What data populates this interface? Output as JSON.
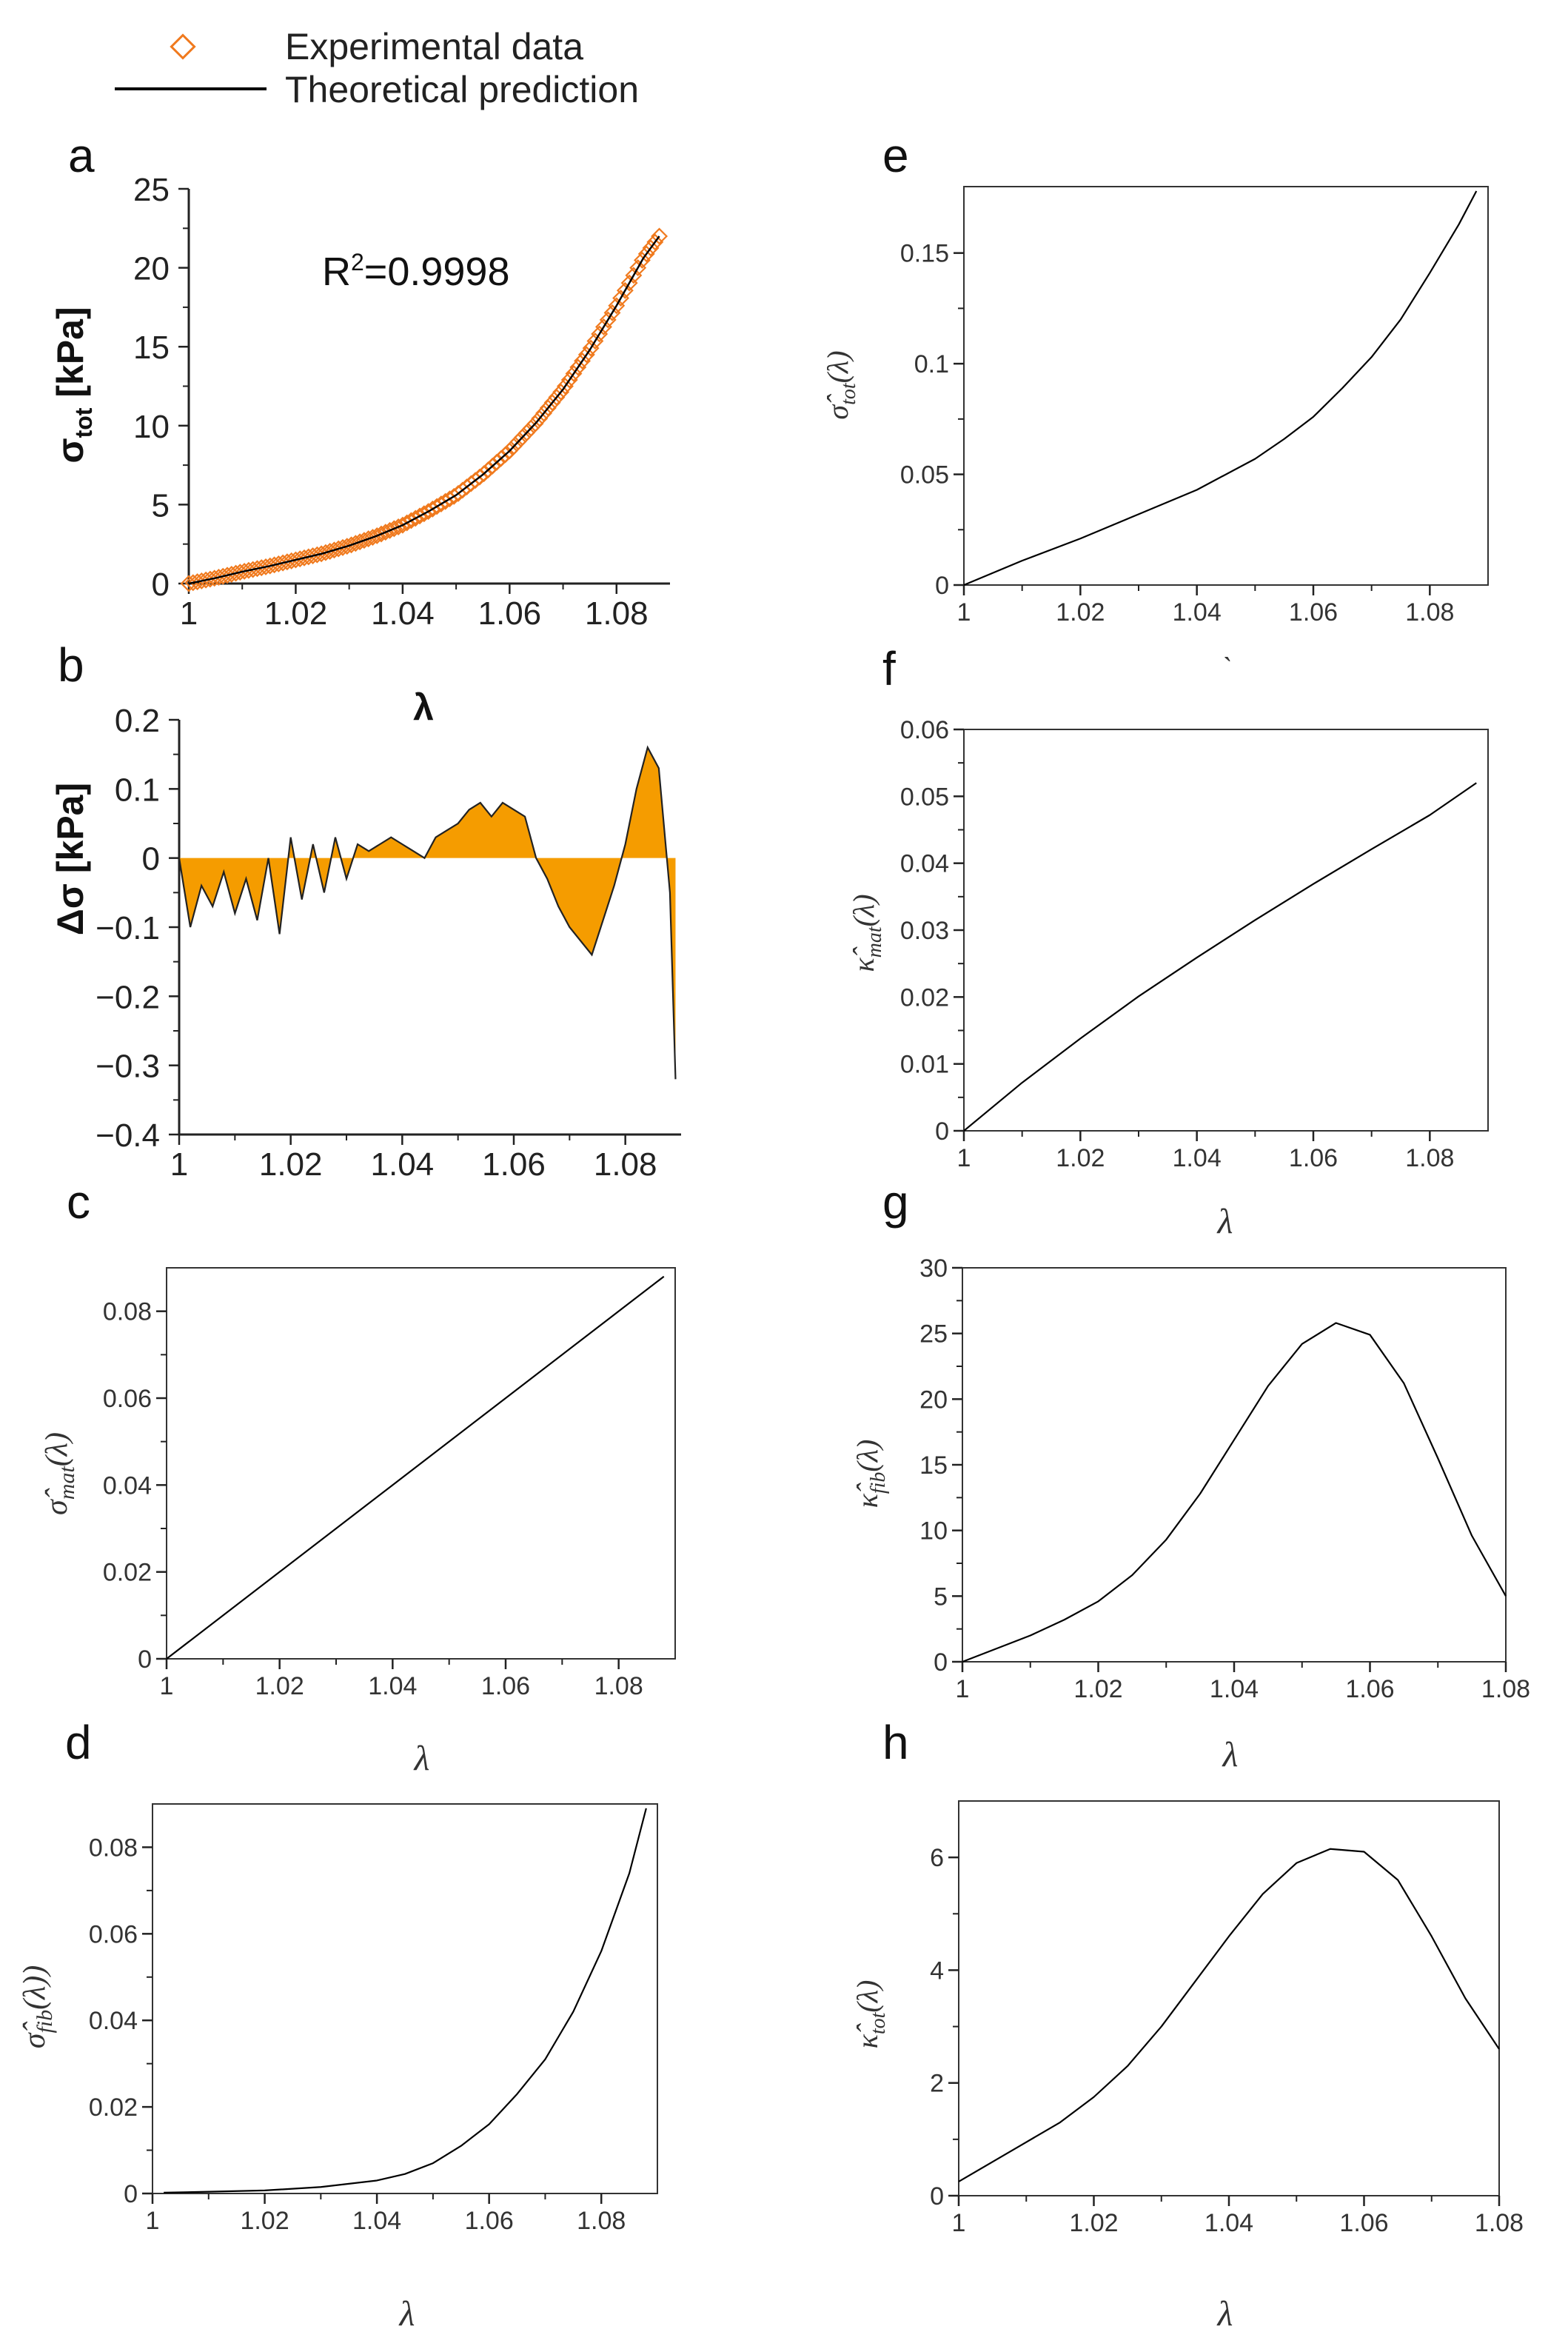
{
  "legend": {
    "experimental_label": "Experimental data",
    "theoretical_label": "Theoretical prediction",
    "marker_color": "#f07a1e",
    "line_color": "#000000"
  },
  "chart_data": [
    {
      "panel": "a",
      "type": "scatter",
      "title": "",
      "xlabel": "λ",
      "ylabel": "σ_tot [kPa]",
      "ylabel_main": "σ",
      "ylabel_sub": "tot",
      "ylabel_unit": " [kPa]",
      "annotation": "R²=0.9998",
      "annotation_main": "R",
      "annotation_sup": "2",
      "annotation_rest": "=0.9998",
      "xlim": [
        1.0,
        1.09
      ],
      "ylim": [
        0,
        25
      ],
      "xticks": [
        "1",
        "1.02",
        "1.04",
        "1.06",
        "1.08"
      ],
      "yticks": [
        "0",
        "5",
        "10",
        "15",
        "20",
        "25"
      ],
      "xtick_values": [
        1.0,
        1.02,
        1.04,
        1.06,
        1.08
      ],
      "ytick_values": [
        0,
        5,
        10,
        15,
        20,
        25
      ],
      "series": [
        {
          "name": "Experimental data",
          "style": "diamond",
          "color": "#f07a1e",
          "x": [
            1.0,
            1.005,
            1.01,
            1.015,
            1.02,
            1.025,
            1.03,
            1.035,
            1.04,
            1.045,
            1.05,
            1.055,
            1.06,
            1.065,
            1.07,
            1.075,
            1.08,
            1.085,
            1.088
          ],
          "y": [
            0.0,
            0.35,
            0.75,
            1.1,
            1.5,
            1.9,
            2.4,
            3.0,
            3.7,
            4.6,
            5.6,
            6.9,
            8.4,
            10.2,
            12.3,
            14.8,
            17.6,
            20.6,
            22.0
          ]
        },
        {
          "name": "Theoretical prediction",
          "style": "line",
          "color": "#000000",
          "x": [
            1.0,
            1.005,
            1.01,
            1.015,
            1.02,
            1.025,
            1.03,
            1.035,
            1.04,
            1.045,
            1.05,
            1.055,
            1.06,
            1.065,
            1.07,
            1.075,
            1.08,
            1.085,
            1.088
          ],
          "y": [
            0.0,
            0.35,
            0.75,
            1.1,
            1.5,
            1.9,
            2.4,
            3.0,
            3.7,
            4.6,
            5.6,
            6.9,
            8.4,
            10.2,
            12.3,
            14.8,
            17.6,
            20.6,
            22.0
          ]
        }
      ]
    },
    {
      "panel": "b",
      "type": "area",
      "title": "",
      "xlabel": "",
      "ylabel": "Δσ [kPa]",
      "fill_color": "#f59c00",
      "xlim": [
        1.0,
        1.09
      ],
      "ylim": [
        -0.4,
        0.2
      ],
      "xticks": [
        "1",
        "1.02",
        "1.04",
        "1.06",
        "1.08"
      ],
      "yticks": [
        "−0.4",
        "−0.3",
        "−0.2",
        "−0.1",
        "0",
        "0.1",
        "0.2"
      ],
      "xtick_values": [
        1.0,
        1.02,
        1.04,
        1.06,
        1.08
      ],
      "ytick_values": [
        -0.4,
        -0.3,
        -0.2,
        -0.1,
        0,
        0.1,
        0.2
      ],
      "series": [
        {
          "name": "Δσ",
          "x": [
            1.0,
            1.002,
            1.004,
            1.006,
            1.008,
            1.01,
            1.012,
            1.014,
            1.016,
            1.018,
            1.02,
            1.022,
            1.024,
            1.026,
            1.028,
            1.03,
            1.032,
            1.034,
            1.036,
            1.038,
            1.04,
            1.042,
            1.044,
            1.046,
            1.048,
            1.05,
            1.052,
            1.054,
            1.056,
            1.058,
            1.06,
            1.062,
            1.064,
            1.066,
            1.068,
            1.07,
            1.072,
            1.074,
            1.076,
            1.078,
            1.08,
            1.082,
            1.084,
            1.086,
            1.088,
            1.089
          ],
          "y": [
            0.0,
            -0.1,
            -0.04,
            -0.07,
            -0.02,
            -0.08,
            -0.03,
            -0.09,
            0.0,
            -0.11,
            0.03,
            -0.06,
            0.02,
            -0.05,
            0.03,
            -0.03,
            0.02,
            0.01,
            0.02,
            0.03,
            0.02,
            0.01,
            0.0,
            0.03,
            0.04,
            0.05,
            0.07,
            0.08,
            0.06,
            0.08,
            0.07,
            0.06,
            0.0,
            -0.03,
            -0.07,
            -0.1,
            -0.12,
            -0.14,
            -0.09,
            -0.04,
            0.02,
            0.1,
            0.16,
            0.13,
            -0.05,
            -0.32
          ]
        }
      ]
    },
    {
      "panel": "c",
      "type": "line",
      "title": "",
      "xlabel": "λ",
      "ylabel": "σ̂_mat(λ)",
      "ylabel_main": "σ̂",
      "ylabel_sub": "mat",
      "ylabel_rest": "(λ)",
      "xlim": [
        1.0,
        1.09
      ],
      "ylim": [
        0,
        0.09
      ],
      "xticks": [
        "1",
        "1.02",
        "1.04",
        "1.06",
        "1.08"
      ],
      "yticks": [
        "0",
        "0.02",
        "0.04",
        "0.06",
        "0.08"
      ],
      "xtick_values": [
        1.0,
        1.02,
        1.04,
        1.06,
        1.08
      ],
      "ytick_values": [
        0,
        0.02,
        0.04,
        0.06,
        0.08
      ],
      "series": [
        {
          "name": "σ̂_mat",
          "x": [
            1.0,
            1.02,
            1.04,
            1.06,
            1.08,
            1.088
          ],
          "y": [
            0.0,
            0.02,
            0.04,
            0.06,
            0.08,
            0.088
          ]
        }
      ]
    },
    {
      "panel": "d",
      "type": "line",
      "title": "",
      "xlabel": "λ",
      "ylabel": "σ̂_fib(λ))",
      "ylabel_main": "σ̂",
      "ylabel_sub": "fib",
      "ylabel_rest": "(λ))",
      "xlim": [
        1.0,
        1.09
      ],
      "ylim": [
        0,
        0.09
      ],
      "xticks": [
        "1",
        "1.02",
        "1.04",
        "1.06",
        "1.08"
      ],
      "yticks": [
        "0",
        "0.02",
        "0.04",
        "0.06",
        "0.08"
      ],
      "xtick_values": [
        1.0,
        1.02,
        1.04,
        1.06,
        1.08
      ],
      "ytick_values": [
        0,
        0.02,
        0.04,
        0.06,
        0.08
      ],
      "series": [
        {
          "name": "σ̂_fib",
          "x": [
            1.002,
            1.01,
            1.02,
            1.03,
            1.04,
            1.045,
            1.05,
            1.055,
            1.06,
            1.065,
            1.07,
            1.075,
            1.08,
            1.085,
            1.088
          ],
          "y": [
            0.0002,
            0.0004,
            0.0007,
            0.0015,
            0.003,
            0.0045,
            0.007,
            0.011,
            0.016,
            0.023,
            0.031,
            0.042,
            0.056,
            0.074,
            0.089
          ]
        }
      ]
    },
    {
      "panel": "e",
      "type": "line",
      "title": "",
      "xlabel": "`",
      "ylabel": "σ̂_tot(λ)",
      "ylabel_main": "σ̂",
      "ylabel_sub": "tot",
      "ylabel_rest": "(λ)",
      "xlim": [
        1.0,
        1.09
      ],
      "ylim": [
        0,
        0.18
      ],
      "xticks": [
        "1",
        "1.02",
        "1.04",
        "1.06",
        "1.08"
      ],
      "yticks": [
        "0",
        "0.05",
        "0.1",
        "0.15"
      ],
      "xtick_values": [
        1.0,
        1.02,
        1.04,
        1.06,
        1.08
      ],
      "ytick_values": [
        0,
        0.05,
        0.1,
        0.15
      ],
      "series": [
        {
          "name": "σ̂_tot",
          "x": [
            1.0,
            1.01,
            1.02,
            1.03,
            1.04,
            1.05,
            1.055,
            1.06,
            1.065,
            1.07,
            1.075,
            1.08,
            1.085,
            1.088
          ],
          "y": [
            0.0,
            0.011,
            0.021,
            0.032,
            0.043,
            0.057,
            0.066,
            0.076,
            0.089,
            0.103,
            0.12,
            0.141,
            0.163,
            0.178
          ]
        }
      ]
    },
    {
      "panel": "f",
      "type": "line",
      "title": "",
      "xlabel": "λ",
      "ylabel": "κ̂_mat(λ)",
      "ylabel_main": "κ̂",
      "ylabel_sub": "mat",
      "ylabel_rest": "(λ)",
      "xlim": [
        1.0,
        1.09
      ],
      "ylim": [
        0,
        0.06
      ],
      "xticks": [
        "1",
        "1.02",
        "1.04",
        "1.06",
        "1.08"
      ],
      "yticks": [
        "0",
        "0.01",
        "0.02",
        "0.03",
        "0.04",
        "0.05",
        "0.06"
      ],
      "xtick_values": [
        1.0,
        1.02,
        1.04,
        1.06,
        1.08
      ],
      "ytick_values": [
        0,
        0.01,
        0.02,
        0.03,
        0.04,
        0.05,
        0.06
      ],
      "series": [
        {
          "name": "κ̂_mat",
          "x": [
            1.0,
            1.01,
            1.02,
            1.03,
            1.04,
            1.05,
            1.06,
            1.07,
            1.08,
            1.088
          ],
          "y": [
            0.0,
            0.0072,
            0.0138,
            0.0201,
            0.0259,
            0.0315,
            0.0369,
            0.0421,
            0.0472,
            0.052
          ]
        }
      ]
    },
    {
      "panel": "g",
      "type": "line",
      "title": "",
      "xlabel": "λ",
      "ylabel": "κ̂_fib(λ)",
      "ylabel_main": "κ̂",
      "ylabel_sub": "fib",
      "ylabel_rest": "(λ)",
      "xlim": [
        1.0,
        1.08
      ],
      "ylim": [
        0,
        30
      ],
      "xticks": [
        "1",
        "1.02",
        "1.04",
        "1.06",
        "1.08"
      ],
      "yticks": [
        "0",
        "5",
        "10",
        "15",
        "20",
        "25",
        "30"
      ],
      "xtick_values": [
        1.0,
        1.02,
        1.04,
        1.06,
        1.08
      ],
      "ytick_values": [
        0,
        5,
        10,
        15,
        20,
        25,
        30
      ],
      "series": [
        {
          "name": "κ̂_fib",
          "x": [
            1.0,
            1.005,
            1.01,
            1.015,
            1.02,
            1.025,
            1.03,
            1.035,
            1.04,
            1.045,
            1.05,
            1.055,
            1.06,
            1.065,
            1.07,
            1.075,
            1.08
          ],
          "y": [
            0.0,
            1.0,
            2.0,
            3.2,
            4.6,
            6.6,
            9.3,
            12.8,
            16.9,
            21.0,
            24.2,
            25.8,
            24.9,
            21.2,
            15.5,
            9.6,
            5.0
          ]
        }
      ]
    },
    {
      "panel": "h",
      "type": "line",
      "title": "",
      "xlabel": "λ",
      "ylabel": "κ̂_tot(λ)",
      "ylabel_main": "κ̂",
      "ylabel_sub": "tot",
      "ylabel_rest": "(λ)",
      "xlim": [
        1.0,
        1.08
      ],
      "ylim": [
        0,
        7
      ],
      "xticks": [
        "1",
        "1.02",
        "1.04",
        "1.06",
        "1.08"
      ],
      "yticks": [
        "0",
        "2",
        "4",
        "6"
      ],
      "xtick_values": [
        1.0,
        1.02,
        1.04,
        1.06,
        1.08
      ],
      "ytick_values": [
        0,
        2,
        4,
        6
      ],
      "series": [
        {
          "name": "κ̂_tot",
          "x": [
            1.0,
            1.005,
            1.01,
            1.015,
            1.02,
            1.025,
            1.03,
            1.035,
            1.04,
            1.045,
            1.05,
            1.055,
            1.06,
            1.065,
            1.07,
            1.075,
            1.08
          ],
          "y": [
            0.25,
            0.6,
            0.95,
            1.3,
            1.75,
            2.3,
            3.0,
            3.8,
            4.6,
            5.35,
            5.9,
            6.15,
            6.1,
            5.6,
            4.6,
            3.5,
            2.6
          ]
        }
      ]
    }
  ]
}
